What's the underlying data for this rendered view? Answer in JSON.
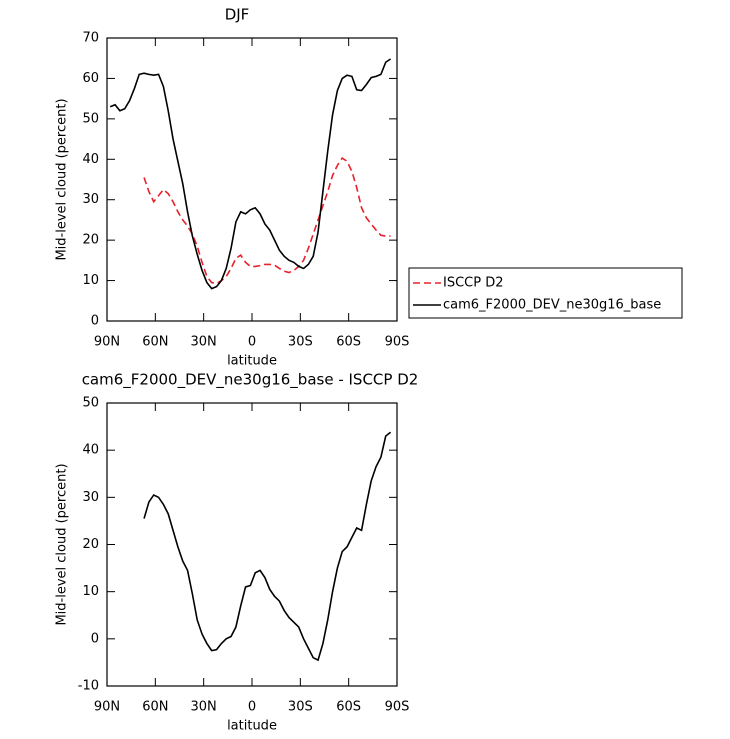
{
  "chart_data": [
    {
      "type": "line",
      "title": "DJF",
      "xlabel": "latitude",
      "ylabel": "Mid-level cloud (percent)",
      "x": [
        88,
        85,
        82,
        79,
        76,
        73,
        70,
        67,
        64,
        61,
        58,
        55,
        52,
        49,
        46,
        43,
        40,
        37,
        34,
        31,
        28,
        25,
        22,
        19,
        16,
        13,
        10,
        7,
        4,
        1,
        -2,
        -5,
        -8,
        -11,
        -14,
        -17,
        -20,
        -23,
        -26,
        -29,
        -32,
        -35,
        -38,
        -41,
        -44,
        -47,
        -50,
        -53,
        -56,
        -59,
        -62,
        -65,
        -68,
        -71,
        -74,
        -77,
        -80,
        -83,
        -86
      ],
      "series": [
        {
          "name": "ISCCP D2",
          "color": "#e8202a",
          "linestyle": "dashed",
          "values": [
            null,
            null,
            null,
            null,
            null,
            null,
            null,
            35.5,
            32,
            29.5,
            31,
            32.5,
            31.5,
            29.5,
            27,
            25,
            23.5,
            21.5,
            18.5,
            14.5,
            11,
            9.5,
            9.3,
            10,
            11,
            13,
            15.5,
            16.3,
            14.5,
            13.5,
            13.5,
            13.7,
            14,
            14,
            13.8,
            13,
            12.3,
            12,
            12.5,
            13.5,
            15,
            18,
            21.5,
            25,
            28.5,
            32,
            36,
            38.5,
            40.3,
            39.5,
            37,
            33,
            28,
            25.5,
            24,
            22.5,
            21.2,
            21,
            21
          ]
        },
        {
          "name": "cam6_F2000_DEV_ne30g16_base",
          "color": "#000000",
          "linestyle": "solid",
          "values": [
            53,
            53.5,
            52,
            52.5,
            54.5,
            57.5,
            61,
            61.3,
            61,
            60.8,
            61,
            58,
            52,
            45,
            39.5,
            34,
            27,
            21,
            16.5,
            12.5,
            9.5,
            8,
            8.5,
            10,
            13,
            18,
            24.5,
            27,
            26.5,
            27.5,
            28,
            26.5,
            24,
            22.5,
            20,
            17.5,
            16,
            15,
            14.5,
            13.5,
            13,
            14,
            16,
            22,
            32,
            42,
            51,
            57,
            60,
            60.8,
            60.5,
            57.2,
            57,
            58.5,
            60.2,
            60.5,
            61,
            64,
            64.8
          ]
        }
      ],
      "xlim": [
        90,
        -90
      ],
      "xticks": [
        {
          "value": 90,
          "label": "90N"
        },
        {
          "value": 60,
          "label": "60N"
        },
        {
          "value": 30,
          "label": "30N"
        },
        0,
        {
          "value": -30,
          "label": "30S"
        },
        {
          "value": -60,
          "label": "60S"
        },
        {
          "value": -90,
          "label": "90S"
        }
      ],
      "ylim": [
        0,
        70
      ],
      "yticks": [
        0,
        10,
        20,
        30,
        40,
        50,
        60,
        70
      ],
      "legend": "right"
    },
    {
      "type": "line",
      "title": "cam6_F2000_DEV_ne30g16_base - ISCCP D2",
      "xlabel": "latitude",
      "ylabel": "Mid-level cloud (percent)",
      "x": [
        67,
        64,
        61,
        58,
        55,
        52,
        49,
        46,
        43,
        40,
        37,
        34,
        31,
        28,
        25,
        22,
        19,
        16,
        13,
        10,
        7,
        4,
        1,
        -2,
        -5,
        -8,
        -11,
        -14,
        -17,
        -20,
        -23,
        -26,
        -29,
        -32,
        -35,
        -38,
        -41,
        -44,
        -47,
        -50,
        -53,
        -56,
        -59,
        -62,
        -65,
        -68,
        -71,
        -74,
        -77,
        -80,
        -83,
        -86
      ],
      "series": [
        {
          "color": "#000000",
          "linestyle": "solid",
          "values": [
            25.5,
            29,
            30.5,
            30,
            28.5,
            26.5,
            23,
            19.5,
            16.5,
            14.5,
            9.5,
            4,
            1,
            -1,
            -2.5,
            -2.3,
            -1,
            0,
            0.5,
            2.5,
            7,
            11,
            11.3,
            14,
            14.5,
            13,
            10.5,
            9,
            8,
            6,
            4.5,
            3.5,
            2.5,
            0,
            -2,
            -4,
            -4.5,
            -1,
            4,
            10,
            15,
            18.5,
            19.5,
            21.5,
            23.5,
            23,
            28.5,
            33.5,
            36.5,
            38.5,
            43,
            43.8
          ]
        }
      ],
      "xlim": [
        90,
        -90
      ],
      "xticks": [
        {
          "value": 90,
          "label": "90N"
        },
        {
          "value": 60,
          "label": "60N"
        },
        {
          "value": 30,
          "label": "30N"
        },
        0,
        {
          "value": -30,
          "label": "30S"
        },
        {
          "value": -60,
          "label": "60S"
        },
        {
          "value": -90,
          "label": "90S"
        }
      ],
      "ylim": [
        -10,
        50
      ],
      "yticks": [
        -10,
        0,
        10,
        20,
        30,
        40,
        50
      ]
    }
  ]
}
